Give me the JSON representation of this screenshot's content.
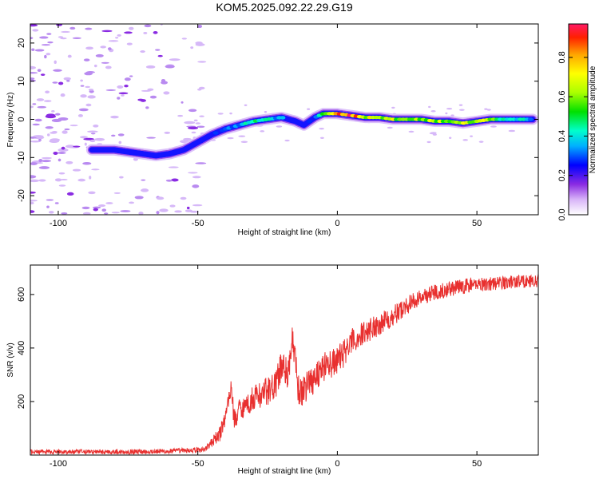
{
  "figure": {
    "title": "KOM5.2025.092.22.29.G19"
  },
  "chart_data": [
    {
      "type": "heatmap",
      "xlabel": "Height of straight line (km)",
      "ylabel": "Frequency (Hz)",
      "xlim": [
        -110,
        72
      ],
      "ylim": [
        -25,
        25
      ],
      "xticks": [
        -100,
        -50,
        0,
        50
      ],
      "yticks": [
        -20,
        -10,
        0,
        10,
        20
      ],
      "colorbar": {
        "label": "Normalized spectral amplitude",
        "range": [
          0.0,
          0.97
        ],
        "ticks": [
          0.0,
          0.2,
          0.4,
          0.6,
          0.8
        ],
        "colormap": [
          "#ffffff",
          "#d8b4f8",
          "#8a2be2",
          "#0000ff",
          "#00b0ff",
          "#00ffcc",
          "#00e000",
          "#aaff00",
          "#ffff00",
          "#ffa500",
          "#ff2000",
          "#ff1a66"
        ]
      },
      "ridge": {
        "x": [
          -88,
          -80,
          -75,
          -70,
          -65,
          -60,
          -55,
          -50,
          -45,
          -40,
          -35,
          -30,
          -25,
          -20,
          -15,
          -12,
          -8,
          -5,
          0,
          5,
          10,
          15,
          20,
          25,
          30,
          35,
          40,
          45,
          50,
          55,
          60,
          65,
          70
        ],
        "frequency": [
          -8,
          -8,
          -8.5,
          -9,
          -9.5,
          -9,
          -8,
          -6,
          -4,
          -2.5,
          -1.5,
          -0.5,
          0,
          0.5,
          -0.5,
          -1.5,
          0.5,
          1.5,
          1.5,
          1,
          0.5,
          0.5,
          0,
          0,
          0,
          -0.5,
          -0.5,
          -1,
          -0.5,
          0,
          0,
          0,
          0
        ],
        "amplitude": [
          0.15,
          0.2,
          0.2,
          0.2,
          0.25,
          0.2,
          0.15,
          0.2,
          0.25,
          0.3,
          0.4,
          0.55,
          0.45,
          0.4,
          0.25,
          0.2,
          0.4,
          0.5,
          0.9,
          0.95,
          0.7,
          0.75,
          0.7,
          0.6,
          0.65,
          0.7,
          0.6,
          0.7,
          0.75,
          0.6,
          0.5,
          0.45,
          0.4
        ]
      }
    },
    {
      "type": "line",
      "xlabel": "Height of straight line (km)",
      "ylabel": "SNR (v/v)",
      "xlim": [
        -110,
        72
      ],
      "ylim": [
        0,
        710
      ],
      "xticks": [
        -100,
        -50,
        0,
        50
      ],
      "yticks": [
        200,
        400,
        600
      ],
      "color": "#e8302f",
      "envelope": {
        "x": [
          -110,
          -80,
          -60,
          -48,
          -45,
          -42,
          -40,
          -38,
          -37,
          -35,
          -32,
          -30,
          -25,
          -22,
          -20,
          -18,
          -16,
          -15,
          -14,
          -13,
          -12,
          -10,
          -5,
          0,
          5,
          10,
          20,
          25,
          30,
          35,
          40,
          45,
          50,
          55,
          60,
          65,
          72
        ],
        "snr": [
          12,
          12,
          14,
          20,
          45,
          80,
          150,
          260,
          130,
          175,
          190,
          215,
          240,
          260,
          340,
          300,
          430,
          340,
          240,
          230,
          250,
          270,
          330,
          350,
          420,
          460,
          520,
          560,
          590,
          610,
          620,
          630,
          640,
          640,
          645,
          650,
          650
        ]
      },
      "noise": {
        "x": [
          -110,
          -48,
          -40,
          -20,
          0,
          30,
          72
        ],
        "amplitude": [
          8,
          10,
          35,
          60,
          55,
          30,
          25
        ]
      }
    }
  ]
}
